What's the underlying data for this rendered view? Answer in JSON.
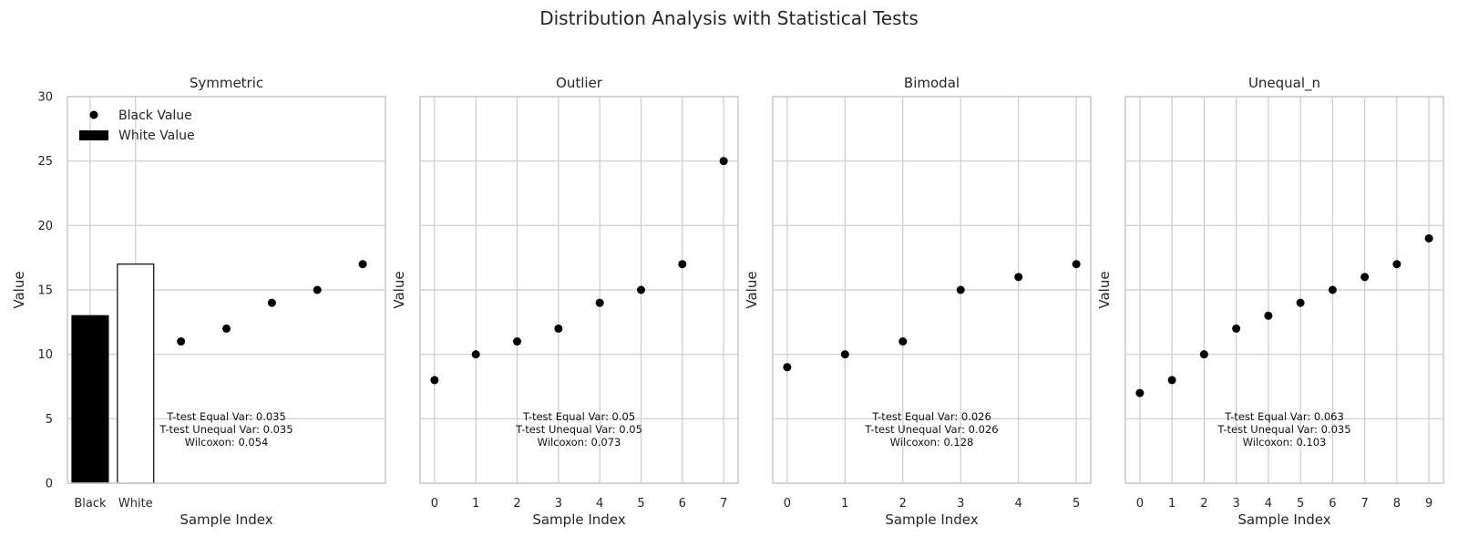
{
  "colors": {
    "grid": "#cccccc",
    "spine": "#cccccc",
    "marker": "#000000",
    "bar_black": "#000000",
    "bar_white": "#ffffff"
  },
  "chart_data": {
    "title": "Distribution Analysis with Statistical Tests",
    "ylabel": "Value",
    "ylim": [
      0,
      30
    ],
    "yticks": [
      0,
      5,
      10,
      15,
      20,
      25,
      30
    ],
    "legend": {
      "position": "upper-left",
      "entries": [
        "Black Value",
        "White Value"
      ]
    },
    "panels": [
      {
        "name": "Symmetric",
        "type": "scatter+bar",
        "xlabel": "Sample Index",
        "xlim": [
          -0.5,
          6.5
        ],
        "xticks": [
          {
            "x": 0,
            "label": "Black"
          },
          {
            "x": 1,
            "label": "White"
          }
        ],
        "bars": [
          {
            "x": 0,
            "value": 13,
            "fill": "black"
          },
          {
            "x": 1,
            "value": 17,
            "fill": "white"
          }
        ],
        "points": [
          {
            "x": 2,
            "y": 11
          },
          {
            "x": 3,
            "y": 12
          },
          {
            "x": 4,
            "y": 14
          },
          {
            "x": 5,
            "y": 15
          },
          {
            "x": 6,
            "y": 17
          }
        ],
        "stats": [
          "T-test Equal Var: 0.035",
          "T-test Unequal Var: 0.035",
          "Wilcoxon: 0.054"
        ],
        "show_ytick_labels": true,
        "show_legend": true
      },
      {
        "name": "Outlier",
        "type": "scatter",
        "xlabel": "Sample Index",
        "xlim": [
          -0.35,
          7.35
        ],
        "xticks": [
          {
            "x": 0,
            "label": "0"
          },
          {
            "x": 1,
            "label": "1"
          },
          {
            "x": 2,
            "label": "2"
          },
          {
            "x": 3,
            "label": "3"
          },
          {
            "x": 4,
            "label": "4"
          },
          {
            "x": 5,
            "label": "5"
          },
          {
            "x": 6,
            "label": "6"
          },
          {
            "x": 7,
            "label": "7"
          }
        ],
        "points": [
          {
            "x": 0,
            "y": 8
          },
          {
            "x": 1,
            "y": 10
          },
          {
            "x": 2,
            "y": 11
          },
          {
            "x": 3,
            "y": 12
          },
          {
            "x": 4,
            "y": 14
          },
          {
            "x": 5,
            "y": 15
          },
          {
            "x": 6,
            "y": 17
          },
          {
            "x": 7,
            "y": 25
          }
        ],
        "stats": [
          "T-test Equal Var: 0.05",
          "T-test Unequal Var: 0.05",
          "Wilcoxon: 0.073"
        ],
        "show_ytick_labels": false,
        "show_legend": false
      },
      {
        "name": "Bimodal",
        "type": "scatter",
        "xlabel": "Sample Index",
        "xlim": [
          -0.25,
          5.25
        ],
        "xticks": [
          {
            "x": 0,
            "label": "0"
          },
          {
            "x": 1,
            "label": "1"
          },
          {
            "x": 2,
            "label": "2"
          },
          {
            "x": 3,
            "label": "3"
          },
          {
            "x": 4,
            "label": "4"
          },
          {
            "x": 5,
            "label": "5"
          }
        ],
        "points": [
          {
            "x": 0,
            "y": 9
          },
          {
            "x": 1,
            "y": 10
          },
          {
            "x": 2,
            "y": 11
          },
          {
            "x": 3,
            "y": 15
          },
          {
            "x": 4,
            "y": 16
          },
          {
            "x": 5,
            "y": 17
          }
        ],
        "stats": [
          "T-test Equal Var: 0.026",
          "T-test Unequal Var: 0.026",
          "Wilcoxon: 0.128"
        ],
        "show_ytick_labels": false,
        "show_legend": false
      },
      {
        "name": "Unequal_n",
        "type": "scatter",
        "xlabel": "Sample Index",
        "xlim": [
          -0.45,
          9.45
        ],
        "xticks": [
          {
            "x": 0,
            "label": "0"
          },
          {
            "x": 1,
            "label": "1"
          },
          {
            "x": 2,
            "label": "2"
          },
          {
            "x": 3,
            "label": "3"
          },
          {
            "x": 4,
            "label": "4"
          },
          {
            "x": 5,
            "label": "5"
          },
          {
            "x": 6,
            "label": "6"
          },
          {
            "x": 7,
            "label": "7"
          },
          {
            "x": 8,
            "label": "8"
          },
          {
            "x": 9,
            "label": "9"
          }
        ],
        "points": [
          {
            "x": 0,
            "y": 7
          },
          {
            "x": 1,
            "y": 8
          },
          {
            "x": 2,
            "y": 10
          },
          {
            "x": 3,
            "y": 12
          },
          {
            "x": 4,
            "y": 13
          },
          {
            "x": 5,
            "y": 14
          },
          {
            "x": 6,
            "y": 15
          },
          {
            "x": 7,
            "y": 16
          },
          {
            "x": 8,
            "y": 17
          },
          {
            "x": 9,
            "y": 19
          }
        ],
        "stats": [
          "T-test Equal Var: 0.063",
          "T-test Unequal Var: 0.035",
          "Wilcoxon: 0.103"
        ],
        "show_ytick_labels": false,
        "show_legend": false
      }
    ]
  }
}
